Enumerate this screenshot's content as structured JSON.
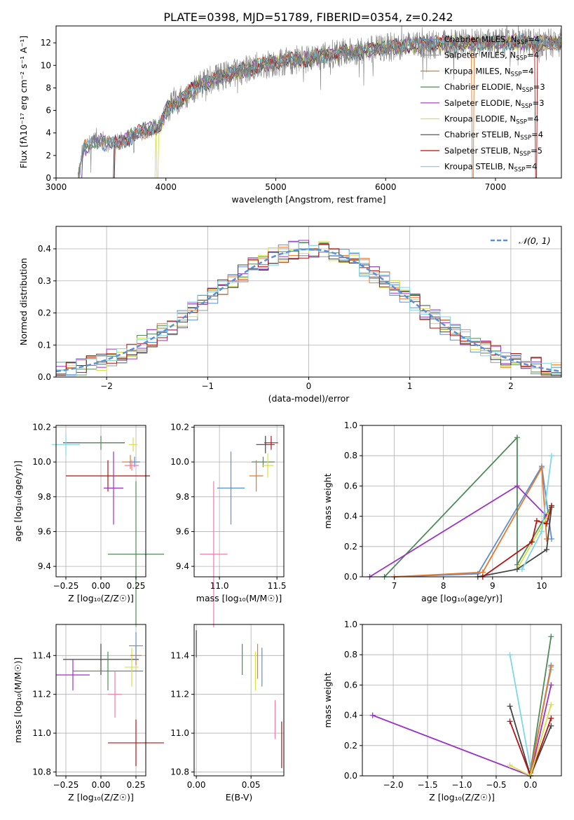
{
  "title": "PLATE=0398, MJD=51789, FIBERID=0354, z=0.242",
  "colors": {
    "chabrier_miles": "#5b8fd6",
    "salpeter_miles": "#999999",
    "kroupa_miles": "#e8782a",
    "chabrier_elodie": "#4f8a58",
    "salpeter_elodie": "#9b33c4",
    "kroupa_elodie": "#d6e04a",
    "chabrier_stelib": "#444444",
    "salpeter_stelib": "#b01515",
    "kroupa_stelib": "#7ed6e6",
    "normal": "#5b8fd6",
    "data": "#7f7f7f",
    "pink": "#f07ca8"
  },
  "chart_data": [
    {
      "type": "line",
      "title": "PLATE=0398, MJD=51789, FIBERID=0354, z=0.242",
      "xlabel": "wavelength [Angstrom, rest frame]",
      "ylabel": "Flux [fλ10⁻¹⁷ erg cm⁻² s⁻¹ A⁻¹]",
      "xlim": [
        3000,
        7600
      ],
      "ylim": [
        0,
        13.5
      ],
      "xticks": [
        "3000",
        "4000",
        "5000",
        "6000",
        "7000"
      ],
      "yticks": [
        "0",
        "2",
        "4",
        "6",
        "8",
        "10",
        "12"
      ],
      "legend": "top-right",
      "series_names": [
        "Chabrier MILES, N_SSP=4",
        "Salpeter MILES, N_SSP=4",
        "Kroupa MILES, N_SSP=4",
        "Chabrier ELODIE, N_SSP=3",
        "Salpeter ELODIE, N_SSP=3",
        "Kroupa ELODIE, N_SSP=4",
        "Chabrier STELIB, N_SSP=4",
        "Salpeter STELIB, N_SSP=5",
        "Kroupa STELIB, N_SSP=4"
      ],
      "legend_entries": [
        {
          "base": "Chabrier MILES, N",
          "sub": "SSP",
          "tail": "=4"
        },
        {
          "base": "Salpeter MILES, N",
          "sub": "SSP",
          "tail": "=4"
        },
        {
          "base": "Kroupa MILES, N",
          "sub": "SSP",
          "tail": "=4"
        },
        {
          "base": "Chabrier ELODIE, N",
          "sub": "SSP",
          "tail": "=3"
        },
        {
          "base": "Salpeter ELODIE, N",
          "sub": "SSP",
          "tail": "=3"
        },
        {
          "base": "Kroupa ELODIE, N",
          "sub": "SSP",
          "tail": "=4"
        },
        {
          "base": "Chabrier STELIB, N",
          "sub": "SSP",
          "tail": "=4"
        },
        {
          "base": "Salpeter STELIB, N",
          "sub": "SSP",
          "tail": "=5"
        },
        {
          "base": "Kroupa STELIB, N",
          "sub": "SSP",
          "tail": "=4"
        }
      ],
      "continuum": {
        "x": [
          3200,
          3250,
          3350,
          3500,
          3650,
          3800,
          3950,
          4000,
          4100,
          4200,
          4300,
          4500,
          4700,
          4900,
          5100,
          5300,
          5500,
          5800,
          6000,
          6200,
          6500,
          6800,
          7000,
          7200,
          7400,
          7600
        ],
        "y": [
          0,
          2.6,
          3.3,
          3.0,
          3.5,
          4.2,
          4.6,
          6.0,
          6.8,
          7.5,
          8.3,
          9.0,
          9.6,
          10.1,
          10.4,
          10.6,
          11.0,
          11.3,
          11.6,
          11.8,
          11.9,
          12.0,
          12.0,
          12.1,
          12.0,
          12.0
        ]
      }
    },
    {
      "type": "line",
      "xlabel": "(data-model)/error",
      "ylabel": "Normed distribution",
      "xlim": [
        -2.5,
        2.5
      ],
      "ylim": [
        0,
        0.47
      ],
      "xticks": [
        "−2",
        "−1",
        "0",
        "1",
        "2"
      ],
      "yticks": [
        "0.0",
        "0.1",
        "0.2",
        "0.3",
        "0.4"
      ],
      "legend": "top-right",
      "legend_label": "𝒩(0, 1)",
      "grid": true
    },
    {
      "type": "scatter",
      "xlabel": "Z [log₁₀(Z/Z☉)]",
      "ylabel": "age  [log₁₀(age/yr)]",
      "xlim": [
        -0.32,
        0.32
      ],
      "ylim": [
        9.34,
        10.21
      ],
      "xticks": [
        "−0.25",
        "0.00",
        "0.25"
      ],
      "yticks": [
        "9.4",
        "9.6",
        "9.8",
        "10.0",
        "10.2"
      ],
      "points": [
        {
          "x": -0.05,
          "y": 10.11,
          "xerr": 0.22,
          "yerr": 0.0
        },
        {
          "x": 0.0,
          "y": 10.11,
          "xerr": 0.15,
          "yerr": 0.04
        },
        {
          "x": 0.23,
          "y": 10.1,
          "xerr": 0.03,
          "yerr": 0.04
        },
        {
          "x": 0.21,
          "y": 10.0,
          "xerr": 0.06,
          "yerr": 0.04
        },
        {
          "x": 0.24,
          "y": 10.0,
          "xerr": 0.04,
          "yerr": 0.03
        },
        {
          "x": 0.22,
          "y": 9.98,
          "xerr": 0.05,
          "yerr": 0.03
        },
        {
          "x": 0.05,
          "y": 9.92,
          "xerr": 0.3,
          "yerr": 0.09
        },
        {
          "x": 0.09,
          "y": 9.85,
          "xerr": 0.07,
          "yerr": 0.21
        },
        {
          "x": 0.25,
          "y": 9.47,
          "xerr": 0.2,
          "yerr": 0.42
        },
        {
          "x": -0.25,
          "y": 10.1,
          "xerr": 0.1,
          "yerr": 0.06
        }
      ]
    },
    {
      "type": "scatter",
      "xlabel": "mass [log₁₀(M/M☉)]",
      "ylabel": "",
      "xlim": [
        10.78,
        11.56
      ],
      "ylim": [
        9.34,
        10.21
      ],
      "xticks": [
        "11.0",
        "11.5"
      ],
      "yticks": [
        "9.4",
        "9.6",
        "9.8",
        "10.0",
        "10.2"
      ],
      "points": [
        {
          "x": 11.4,
          "y": 10.1,
          "xerr": 0.08,
          "yerr": 0.05
        },
        {
          "x": 11.38,
          "y": 10.0,
          "xerr": 0.1,
          "yerr": 0.03
        },
        {
          "x": 11.42,
          "y": 9.98,
          "xerr": 0.05,
          "yerr": 0.07
        },
        {
          "x": 11.32,
          "y": 9.92,
          "xerr": 0.06,
          "yerr": 0.09
        },
        {
          "x": 11.1,
          "y": 9.85,
          "xerr": 0.12,
          "yerr": 0.21
        },
        {
          "x": 10.95,
          "y": 9.47,
          "xerr": 0.12,
          "yerr": 0.42
        },
        {
          "x": 11.45,
          "y": 10.11,
          "xerr": 0.06,
          "yerr": 0.04
        }
      ]
    },
    {
      "type": "line",
      "xlabel": "age  [log₁₀(age/yr)]",
      "ylabel": "mass weight",
      "xlim": [
        6.35,
        10.4
      ],
      "ylim": [
        0,
        1
      ],
      "xticks": [
        "7",
        "8",
        "9",
        "10"
      ],
      "yticks": [
        "0.0",
        "0.2",
        "0.4",
        "0.6",
        "0.8",
        "1.0"
      ],
      "series": [
        {
          "name": "Chabrier MILES",
          "x": [
            7.0,
            8.7,
            10.0,
            10.2
          ],
          "y": [
            0.0,
            0.02,
            0.73,
            0.25
          ]
        },
        {
          "name": "Kroupa MILES",
          "x": [
            7.0,
            8.8,
            10.0,
            10.1
          ],
          "y": [
            0.0,
            0.03,
            0.72,
            0.25
          ]
        },
        {
          "name": "Chabrier ELODIE",
          "x": [
            6.8,
            9.5,
            9.5,
            10.2
          ],
          "y": [
            0.0,
            0.92,
            0.08,
            0.47
          ]
        },
        {
          "name": "Salpeter ELODIE",
          "x": [
            6.5,
            9.5,
            10.1
          ],
          "y": [
            0.0,
            0.6,
            0.4
          ]
        },
        {
          "name": "Kroupa ELODIE",
          "x": [
            9.5,
            10.15,
            10.2
          ],
          "y": [
            0.05,
            0.42,
            0.47
          ]
        },
        {
          "name": "Chabrier STELIB",
          "x": [
            8.7,
            9.5,
            10.1,
            10.2
          ],
          "y": [
            0.0,
            0.05,
            0.18,
            0.46
          ]
        },
        {
          "name": "Salpeter STELIB",
          "x": [
            8.8,
            9.8,
            9.9,
            10.1,
            10.2
          ],
          "y": [
            0.0,
            0.23,
            0.37,
            0.35,
            0.47
          ]
        },
        {
          "name": "Kroupa STELIB",
          "x": [
            9.6,
            10.0,
            10.2
          ],
          "y": [
            0.05,
            0.3,
            0.8
          ]
        }
      ]
    },
    {
      "type": "scatter",
      "xlabel": "Z [log₁₀(Z/Z☉)]",
      "ylabel": "mass [log₁₀(M/M☉)]",
      "xlim": [
        -0.32,
        0.32
      ],
      "ylim": [
        10.78,
        11.56
      ],
      "xticks": [
        "−0.25",
        "0.00",
        "0.25"
      ],
      "yticks": [
        "10.8",
        "11.0",
        "11.2",
        "11.4"
      ],
      "points": [
        {
          "x": 0.0,
          "y": 11.38,
          "xerr": 0.27,
          "yerr": 0.08
        },
        {
          "x": 0.05,
          "y": 11.32,
          "xerr": 0.25,
          "yerr": 0.1
        },
        {
          "x": 0.22,
          "y": 11.34,
          "xerr": 0.05,
          "yerr": 0.1
        },
        {
          "x": 0.25,
          "y": 11.4,
          "xerr": 0.04,
          "yerr": 0.05
        },
        {
          "x": 0.25,
          "y": 11.45,
          "xerr": 0.05,
          "yerr": 0.07
        },
        {
          "x": 0.1,
          "y": 11.2,
          "xerr": 0.05,
          "yerr": 0.12
        },
        {
          "x": 0.25,
          "y": 10.95,
          "xerr": 0.2,
          "yerr": 0.12
        },
        {
          "x": -0.2,
          "y": 11.3,
          "xerr": 0.12,
          "yerr": 0.08
        }
      ]
    },
    {
      "type": "scatter",
      "xlabel": "E(B-V)",
      "ylabel": "",
      "xlim": [
        -0.002,
        0.08
      ],
      "ylim": [
        10.78,
        11.56
      ],
      "xticks": [
        "0.00",
        "0.05"
      ],
      "yticks": [
        "10.8",
        "11.0",
        "11.2",
        "11.4"
      ],
      "points": [
        {
          "x": 0.0,
          "y": 11.46,
          "xerr": 0.0,
          "yerr": 0.07
        },
        {
          "x": 0.042,
          "y": 11.38,
          "xerr": 0.0,
          "yerr": 0.08
        },
        {
          "x": 0.054,
          "y": 11.32,
          "xerr": 0.0,
          "yerr": 0.1
        },
        {
          "x": 0.056,
          "y": 11.37,
          "xerr": 0.0,
          "yerr": 0.09
        },
        {
          "x": 0.06,
          "y": 11.34,
          "xerr": 0.0,
          "yerr": 0.1
        },
        {
          "x": 0.072,
          "y": 11.07,
          "xerr": 0.0,
          "yerr": 0.1
        },
        {
          "x": 0.078,
          "y": 10.94,
          "xerr": 0.0,
          "yerr": 0.12
        }
      ]
    },
    {
      "type": "line",
      "xlabel": "Z [log₁₀(Z/Z☉)]",
      "ylabel": "mass weight",
      "xlim": [
        -2.45,
        0.45
      ],
      "ylim": [
        0,
        1
      ],
      "xticks": [
        "−2.0",
        "−1.5",
        "−1.0",
        "−0.5",
        "0.0"
      ],
      "yticks": [
        "0.0",
        "0.2",
        "0.4",
        "0.6",
        "0.8",
        "1.0"
      ],
      "series": [
        {
          "name": "Salpeter ELODIE",
          "x": [
            -2.3,
            0.0,
            0.3
          ],
          "y": [
            0.4,
            0.0,
            0.6
          ]
        },
        {
          "name": "Kroupa STELIB",
          "x": [
            -0.3,
            0.0,
            0.3
          ],
          "y": [
            0.8,
            0.05,
            0.7
          ]
        },
        {
          "name": "Chabrier ELODIE",
          "x": [
            0.0,
            0.3
          ],
          "y": [
            0.03,
            0.92
          ]
        },
        {
          "name": "Chabrier MILES",
          "x": [
            0.0,
            0.3
          ],
          "y": [
            0.02,
            0.73
          ]
        },
        {
          "name": "Kroupa MILES",
          "x": [
            0.0,
            0.3
          ],
          "y": [
            0.02,
            0.72
          ]
        },
        {
          "name": "Chabrier STELIB",
          "x": [
            -0.3,
            0.0,
            0.3
          ],
          "y": [
            0.46,
            0.0,
            0.33
          ]
        },
        {
          "name": "Salpeter STELIB",
          "x": [
            -0.3,
            0.0,
            0.3
          ],
          "y": [
            0.36,
            0.0,
            0.38
          ]
        },
        {
          "name": "Kroupa ELODIE",
          "x": [
            -0.3,
            0.0,
            0.3
          ],
          "y": [
            0.07,
            0.0,
            0.47
          ]
        }
      ]
    }
  ]
}
